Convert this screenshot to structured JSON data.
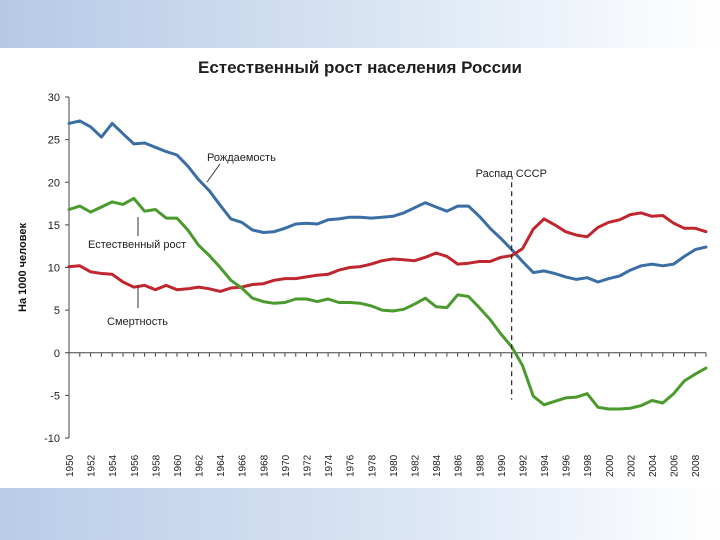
{
  "chart_data": {
    "type": "line",
    "title": "Естественный рост населения России",
    "ylabel": "На 1000 человек",
    "xlabel": "",
    "ylim": [
      -10,
      30
    ],
    "yticks": [
      30,
      25,
      20,
      15,
      10,
      5,
      0,
      -5,
      -10
    ],
    "xlim": [
      1950,
      2009
    ],
    "x_tick_labels": [
      "1950",
      "1952",
      "1954",
      "1956",
      "1958",
      "1960",
      "1962",
      "1964",
      "1966",
      "1968",
      "1970",
      "1972",
      "1974",
      "1976",
      "1978",
      "1980",
      "1982",
      "1984",
      "1986",
      "1988",
      "1990",
      "1992",
      "1994",
      "1996",
      "1998",
      "2000",
      "2002",
      "2004",
      "2006",
      "2008"
    ],
    "x_tick_label_positions": [
      1950,
      1952,
      1954,
      1956,
      1958,
      1960,
      1962,
      1964,
      1966,
      1968,
      1970,
      1972,
      1974,
      1976,
      1978,
      1980,
      1982,
      1984,
      1986,
      1988,
      1990,
      1992,
      1994,
      1996,
      1998,
      2000,
      2002,
      2004,
      2006,
      2008
    ],
    "colors": {
      "birth": "#3a6ea5",
      "death": "#c0262d",
      "natural": "#4a9a2e",
      "axis": "#444444",
      "marker": "#222222"
    },
    "series": [
      {
        "name": "Рождаемость",
        "color_key": "birth",
        "x": [
          1950,
          1951,
          1952,
          1953,
          1954,
          1955,
          1956,
          1957,
          1958,
          1959,
          1960,
          1961,
          1962,
          1963,
          1964,
          1965,
          1966,
          1967,
          1968,
          1969,
          1970,
          1971,
          1972,
          1973,
          1974,
          1975,
          1976,
          1977,
          1978,
          1979,
          1980,
          1981,
          1982,
          1983,
          1984,
          1985,
          1986,
          1987,
          1988,
          1989,
          1990,
          1991,
          1992,
          1993,
          1994,
          1995,
          1996,
          1997,
          1998,
          1999,
          2000,
          2001,
          2002,
          2003,
          2004,
          2005,
          2006,
          2007,
          2008,
          2009
        ],
        "values": [
          26.9,
          27.2,
          26.5,
          25.3,
          26.9,
          25.7,
          24.5,
          24.6,
          24.1,
          23.6,
          23.2,
          21.9,
          20.3,
          19.0,
          17.3,
          15.7,
          15.3,
          14.4,
          14.1,
          14.2,
          14.6,
          15.1,
          15.2,
          15.1,
          15.6,
          15.7,
          15.9,
          15.9,
          15.8,
          15.9,
          16.0,
          16.4,
          17.0,
          17.6,
          17.1,
          16.6,
          17.2,
          17.2,
          16.0,
          14.6,
          13.4,
          12.1,
          10.7,
          9.4,
          9.6,
          9.3,
          8.9,
          8.6,
          8.8,
          8.3,
          8.7,
          9.0,
          9.7,
          10.2,
          10.4,
          10.2,
          10.4,
          11.3,
          12.1,
          12.4
        ]
      },
      {
        "name": "Смертность",
        "color_key": "death",
        "x": [
          1950,
          1951,
          1952,
          1953,
          1954,
          1955,
          1956,
          1957,
          1958,
          1959,
          1960,
          1961,
          1962,
          1963,
          1964,
          1965,
          1966,
          1967,
          1968,
          1969,
          1970,
          1971,
          1972,
          1973,
          1974,
          1975,
          1976,
          1977,
          1978,
          1979,
          1980,
          1981,
          1982,
          1983,
          1984,
          1985,
          1986,
          1987,
          1988,
          1989,
          1990,
          1991,
          1992,
          1993,
          1994,
          1995,
          1996,
          1997,
          1998,
          1999,
          2000,
          2001,
          2002,
          2003,
          2004,
          2005,
          2006,
          2007,
          2008,
          2009
        ],
        "values": [
          10.1,
          10.2,
          9.5,
          9.3,
          9.2,
          8.3,
          7.7,
          7.9,
          7.4,
          7.9,
          7.4,
          7.5,
          7.7,
          7.5,
          7.2,
          7.6,
          7.7,
          8.0,
          8.1,
          8.5,
          8.7,
          8.7,
          8.9,
          9.1,
          9.2,
          9.7,
          10.0,
          10.1,
          10.4,
          10.8,
          11.0,
          10.9,
          10.8,
          11.2,
          11.7,
          11.3,
          10.4,
          10.5,
          10.7,
          10.7,
          11.2,
          11.4,
          12.2,
          14.5,
          15.7,
          15.0,
          14.2,
          13.8,
          13.6,
          14.7,
          15.3,
          15.6,
          16.2,
          16.4,
          16.0,
          16.1,
          15.2,
          14.6,
          14.6,
          14.2
        ]
      },
      {
        "name": "Естественный рост",
        "color_key": "natural",
        "x": [
          1950,
          1951,
          1952,
          1953,
          1954,
          1955,
          1956,
          1957,
          1958,
          1959,
          1960,
          1961,
          1962,
          1963,
          1964,
          1965,
          1966,
          1967,
          1968,
          1969,
          1970,
          1971,
          1972,
          1973,
          1974,
          1975,
          1976,
          1977,
          1978,
          1979,
          1980,
          1981,
          1982,
          1983,
          1984,
          1985,
          1986,
          1987,
          1988,
          1989,
          1990,
          1991,
          1992,
          1993,
          1994,
          1995,
          1996,
          1997,
          1998,
          1999,
          2000,
          2001,
          2002,
          2003,
          2004,
          2005,
          2006,
          2007,
          2008,
          2009
        ],
        "values": [
          16.8,
          17.2,
          16.5,
          17.1,
          17.7,
          17.4,
          18.1,
          16.6,
          16.8,
          15.8,
          15.8,
          14.4,
          12.6,
          11.4,
          10.0,
          8.5,
          7.6,
          6.4,
          6.0,
          5.8,
          5.9,
          6.3,
          6.3,
          6.0,
          6.3,
          5.9,
          5.9,
          5.8,
          5.5,
          5.0,
          4.9,
          5.1,
          5.7,
          6.4,
          5.4,
          5.3,
          6.8,
          6.6,
          5.3,
          3.9,
          2.2,
          0.7,
          -1.5,
          -5.1,
          -6.1,
          -5.7,
          -5.3,
          -5.2,
          -4.8,
          -6.4,
          -6.6,
          -6.6,
          -6.5,
          -6.2,
          -5.6,
          -5.9,
          -4.8,
          -3.3,
          -2.5,
          -1.8
        ]
      }
    ],
    "annotations": {
      "birth_label": "Рождаемость",
      "natural_label": "Естественный рост",
      "death_label": "Смертность",
      "ussr_label": "Распад СССР",
      "ussr_year": 1991
    }
  }
}
